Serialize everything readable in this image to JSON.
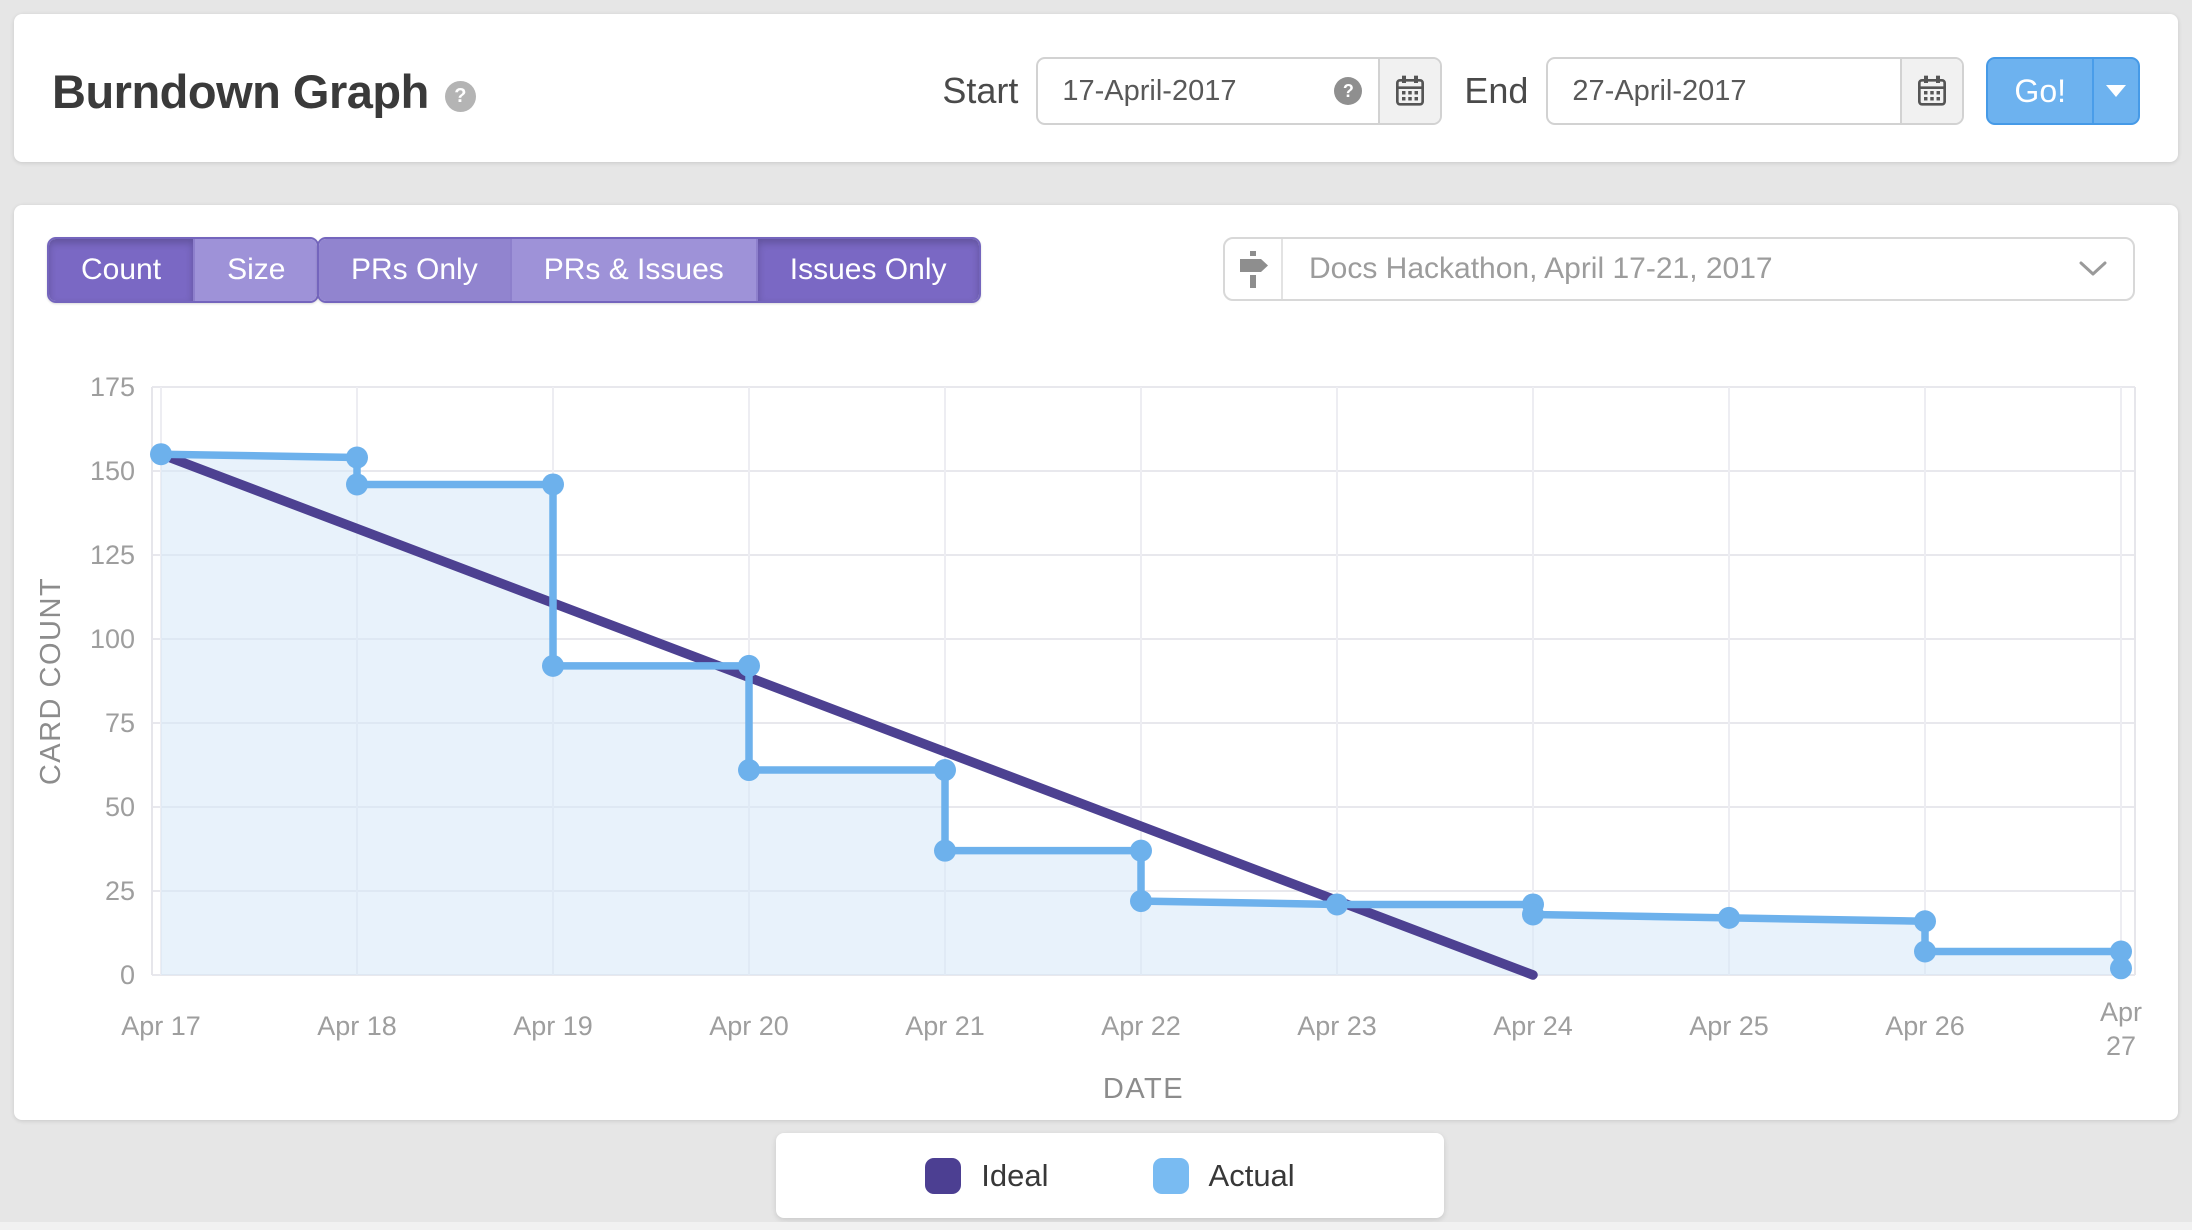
{
  "header": {
    "title": "Burndown Graph",
    "title_help_icon": "?",
    "start_label": "Start",
    "start_value": "17-April-2017",
    "start_help_icon": "?",
    "end_label": "End",
    "end_value": "27-April-2017",
    "go_label": "Go!"
  },
  "toolbar": {
    "count_size": [
      {
        "label": "Count",
        "selected": true
      },
      {
        "label": "Size",
        "selected": false
      }
    ],
    "filter": [
      {
        "label": "PRs Only",
        "selected": false
      },
      {
        "label": "PRs & Issues",
        "selected": false
      },
      {
        "label": "Issues Only",
        "selected": true
      }
    ],
    "milestone": {
      "value": "Docs Hackathon, April 17-21, 2017",
      "icon": "milestone-signpost"
    }
  },
  "chart_data": {
    "type": "line",
    "xlabel": "DATE",
    "ylabel": "CARD COUNT",
    "ylim": [
      0,
      175
    ],
    "yticks": [
      0,
      25,
      50,
      75,
      100,
      125,
      150,
      175
    ],
    "categories": [
      "Apr 17",
      "Apr 18",
      "Apr 19",
      "Apr 20",
      "Apr 21",
      "Apr 22",
      "Apr 23",
      "Apr 24",
      "Apr 25",
      "Apr 26",
      "Apr 27"
    ],
    "grid": true,
    "wrap_last_xtick": true,
    "legend_position": "bottom",
    "series": [
      {
        "name": "Ideal",
        "style": "straight",
        "color": "#4d4191",
        "points": [
          {
            "x": "Apr 17",
            "y": 155
          },
          {
            "x": "Apr 24",
            "y": 0
          }
        ]
      },
      {
        "name": "Actual",
        "style": "step",
        "color": "#6db1ec",
        "area_fill": "rgba(214,232,247,0.55)",
        "steps": [
          {
            "x": "Apr 17",
            "value": 155
          },
          {
            "x": "Apr 18",
            "value": 154,
            "drop_to": 146
          },
          {
            "x": "Apr 19",
            "value": 146,
            "drop_to": 92
          },
          {
            "x": "Apr 20",
            "value": 92,
            "drop_to": 61
          },
          {
            "x": "Apr 21",
            "value": 61,
            "drop_to": 37
          },
          {
            "x": "Apr 22",
            "value": 37,
            "drop_to": 22
          },
          {
            "x": "Apr 23",
            "value": 21
          },
          {
            "x": "Apr 24",
            "value": 21,
            "drop_to": 18
          },
          {
            "x": "Apr 25",
            "value": 17
          },
          {
            "x": "Apr 26",
            "value": 16,
            "drop_to": 7
          },
          {
            "x": "Apr 27",
            "value": 7,
            "drop_to": 2
          }
        ]
      }
    ]
  },
  "legend": [
    {
      "label": "Ideal",
      "color": "#4c3f92"
    },
    {
      "label": "Actual",
      "color": "#79bbf2"
    }
  ],
  "colors": {
    "page_bg": "#e6e6e6",
    "selected_purple": "#7a68c4",
    "unselected_purple": "#9e92d8",
    "go_blue": "#6db2ef",
    "ideal_line": "#4d4191",
    "actual_line": "#6db1ec",
    "grid_line": "#e9e9ee",
    "axis_text": "#9e9e9e"
  }
}
